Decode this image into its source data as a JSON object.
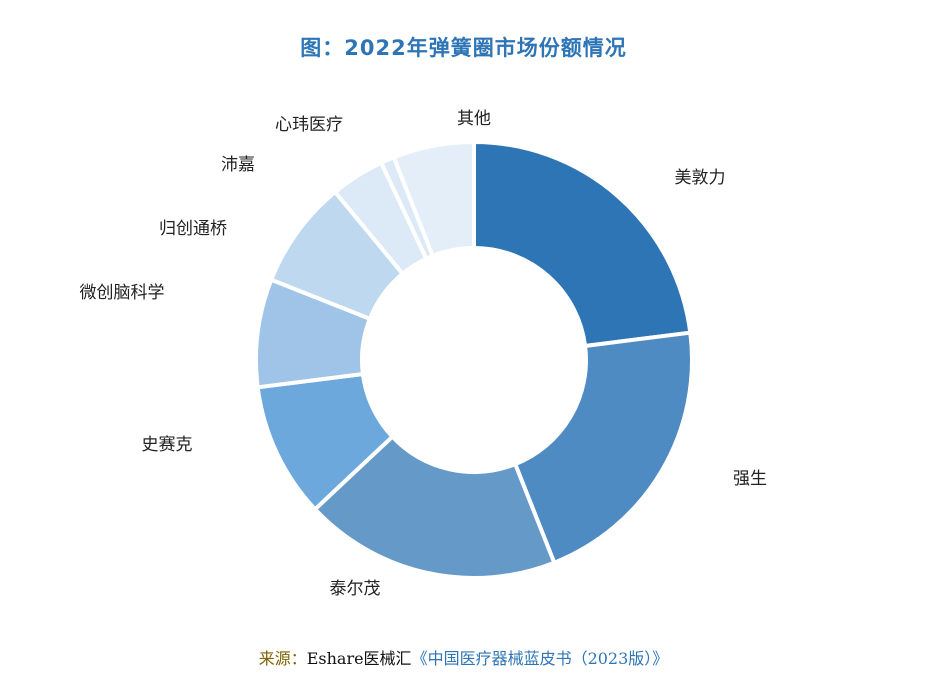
{
  "chart_data": {
    "type": "pie",
    "donut": true,
    "title": "图：2022年弹簧圈市场份额情况",
    "categories": [
      "美敦力",
      "强生",
      "泰尔茂",
      "史赛克",
      "微创脑科学",
      "归创通桥",
      "沛嘉",
      "心玮医疗",
      "其他"
    ],
    "values": [
      23,
      21,
      19,
      10,
      8,
      8,
      4,
      1,
      6
    ],
    "unit": "%",
    "colors": [
      "#2e75b6",
      "#4e8bc2",
      "#6499c8",
      "#6ca8dc",
      "#9fc4e7",
      "#bdd8ef",
      "#dceaf7",
      "#dceaf7",
      "#e4eef8"
    ],
    "legend": "none",
    "start_angle": "12 o'clock",
    "direction": "clockwise"
  },
  "source": {
    "prefix": "来源：",
    "org": "Eshare医械汇",
    "book": "《中国医疗器械蓝皮书（2023版）》"
  },
  "colors": {
    "title": "#2e75b6",
    "source_prefix": "#806000",
    "source_book": "#2e75b6"
  }
}
